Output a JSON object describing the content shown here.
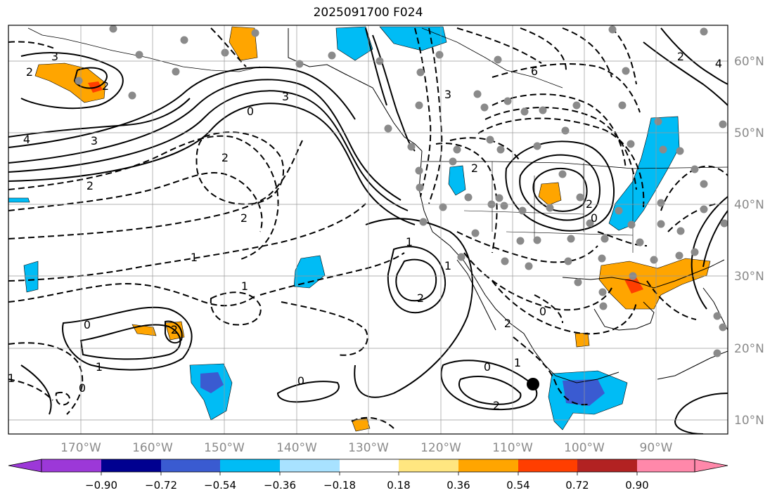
{
  "title": "2025091700 F024",
  "map": {
    "projection": "PlateCarree",
    "lon_range": [
      -180,
      -80
    ],
    "lat_range": [
      8,
      65
    ],
    "lat_ticks": [
      "60°N",
      "50°N",
      "40°N",
      "30°N",
      "20°N",
      "10°N"
    ],
    "lon_ticks": [
      "170°W",
      "160°W",
      "150°W",
      "140°W",
      "130°W",
      "120°W",
      "110°W",
      "100°W",
      "90°W"
    ],
    "marker": "storm-center"
  },
  "colorbar": {
    "colors": [
      "#9c38d8",
      "#000090",
      "#3a5bd1",
      "#00bcf5",
      "#a8e2ff",
      "#ffffff",
      "#ffe680",
      "#ffa500",
      "#ff3e00",
      "#b22222",
      "#ff88aa"
    ],
    "tick_labels": [
      "−0.90",
      "−0.72",
      "−0.54",
      "−0.36",
      "−0.18",
      "0.18",
      "0.36",
      "0.54",
      "0.72",
      "0.90"
    ]
  },
  "contour_labels": [
    "3",
    "2",
    "4",
    "3",
    "2",
    "0",
    "3",
    "2",
    "2",
    "1",
    "1",
    "0",
    "2",
    "1",
    "0",
    "1",
    "1",
    "2",
    "0",
    "2",
    "0",
    "1",
    "0",
    "1",
    "2",
    "3",
    "2",
    "6",
    "0",
    "2",
    "4",
    "2",
    "2"
  ]
}
